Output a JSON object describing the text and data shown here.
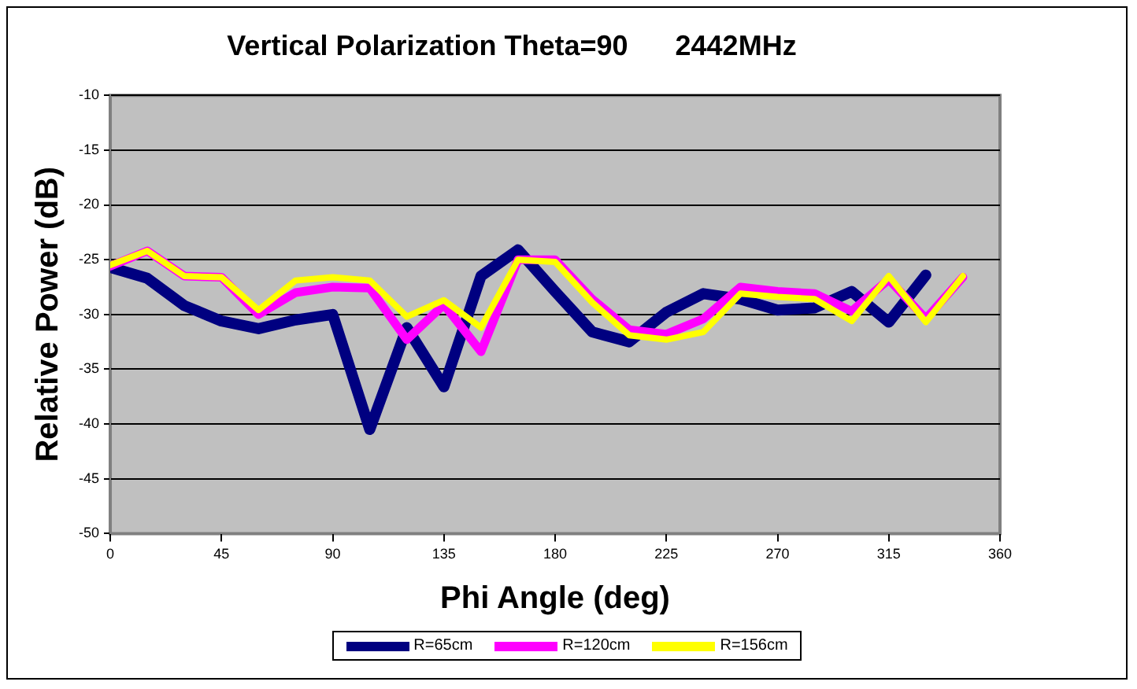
{
  "chart_data": {
    "type": "line",
    "title": "Vertical Polarization Theta=90      2442MHz",
    "xlabel": "Phi Angle (deg)",
    "ylabel": "Relative Power (dB)",
    "x": [
      0,
      15,
      30,
      45,
      60,
      75,
      90,
      105,
      120,
      135,
      150,
      165,
      180,
      195,
      210,
      225,
      240,
      255,
      270,
      285,
      300,
      315,
      330,
      345
    ],
    "series": [
      {
        "name": "R=65cm",
        "color": "#000080",
        "values": [
          -25.7,
          -26.7,
          -29.2,
          -30.6,
          -31.3,
          -30.5,
          -30.0,
          -40.5,
          -31.2,
          -36.6,
          -26.5,
          -24.1,
          -27.9,
          -31.6,
          -32.5,
          -29.8,
          -28.1,
          -28.6,
          -29.6,
          -29.4,
          -27.9,
          -30.7,
          -26.4,
          null
        ]
      },
      {
        "name": "R=120cm",
        "color": "#ff00ff",
        "values": [
          -25.6,
          -24.2,
          -26.5,
          -26.6,
          -30.0,
          -28.0,
          -27.5,
          -27.6,
          -32.3,
          -29.1,
          -33.4,
          -25.0,
          -25.0,
          -28.6,
          -31.4,
          -31.8,
          -30.4,
          -27.5,
          -27.9,
          -28.1,
          -29.7,
          -26.8,
          -30.4,
          -26.6
        ]
      },
      {
        "name": "R=156cm",
        "color": "#ffff00",
        "values": [
          -25.5,
          -24.2,
          -26.5,
          -26.6,
          -29.6,
          -26.9,
          -26.6,
          -26.9,
          -30.2,
          -28.7,
          -31.2,
          -25.0,
          -25.2,
          -28.9,
          -31.9,
          -32.3,
          -31.6,
          -28.1,
          -28.4,
          -28.6,
          -30.6,
          -26.5,
          -30.7,
          -26.5
        ]
      }
    ],
    "xlim": [
      0,
      360
    ],
    "xticks": [
      0,
      45,
      90,
      135,
      180,
      225,
      270,
      315,
      360
    ],
    "ylim": [
      -50,
      -10
    ],
    "yticks": [
      -50,
      -45,
      -40,
      -35,
      -30,
      -25,
      -20,
      -15,
      -10
    ],
    "grid": "y",
    "legend": "bottom",
    "marker": "none",
    "line_style": "solid"
  }
}
